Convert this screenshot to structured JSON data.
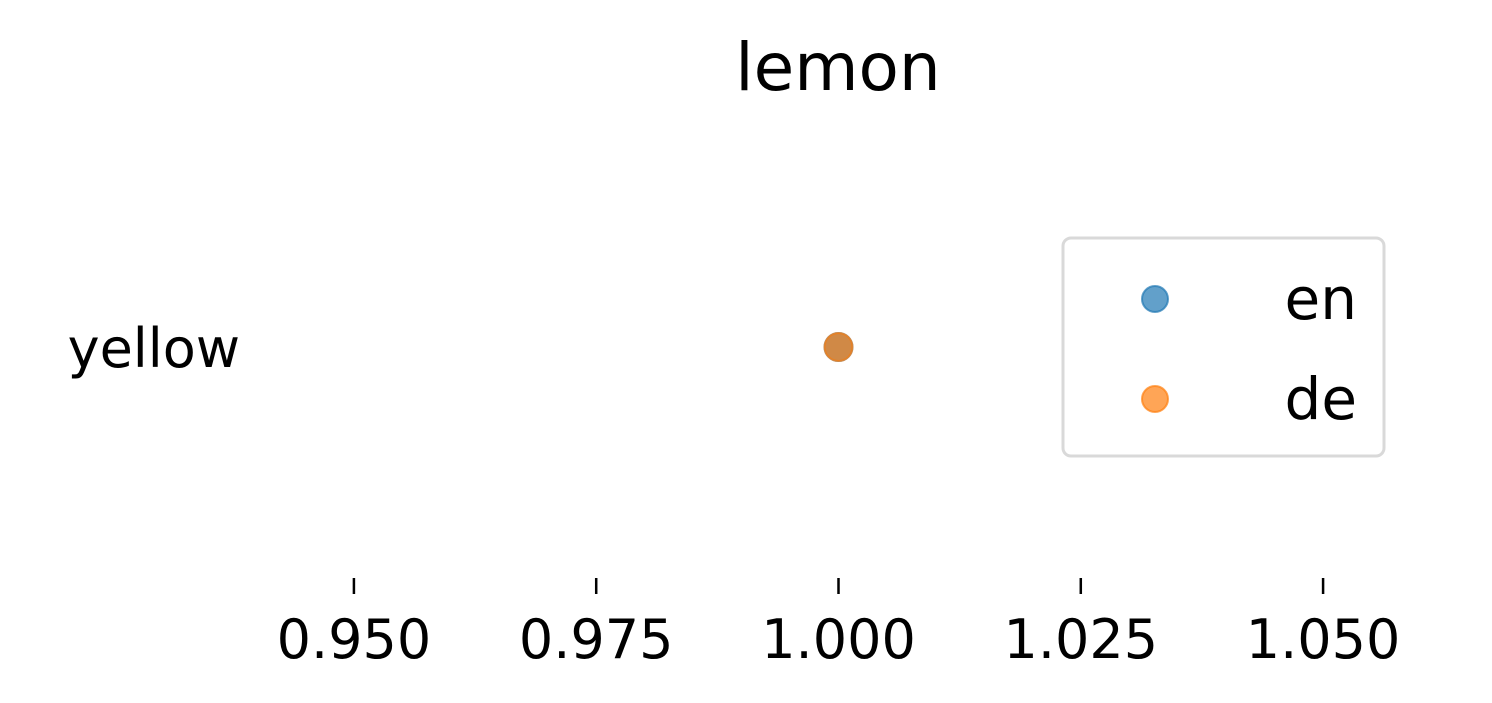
{
  "chart_data": {
    "type": "scatter",
    "title": "lemon",
    "xlabel": "",
    "ylabel": "",
    "xlim": [
      0.94,
      1.06
    ],
    "categories": [
      "yellow"
    ],
    "series": [
      {
        "name": "en",
        "color": "#1f77b4",
        "points": [
          {
            "x": 1.0,
            "y": "yellow"
          }
        ]
      },
      {
        "name": "de",
        "color": "#ff7f0e",
        "points": [
          {
            "x": 1.0,
            "y": "yellow"
          }
        ]
      }
    ],
    "xticks": [
      {
        "value": 0.95,
        "label": "0.950"
      },
      {
        "value": 0.975,
        "label": "0.975"
      },
      {
        "value": 1.0,
        "label": "1.000"
      },
      {
        "value": 1.025,
        "label": "1.025"
      },
      {
        "value": 1.05,
        "label": "1.050"
      }
    ],
    "grid": false,
    "legend_position": "right"
  }
}
